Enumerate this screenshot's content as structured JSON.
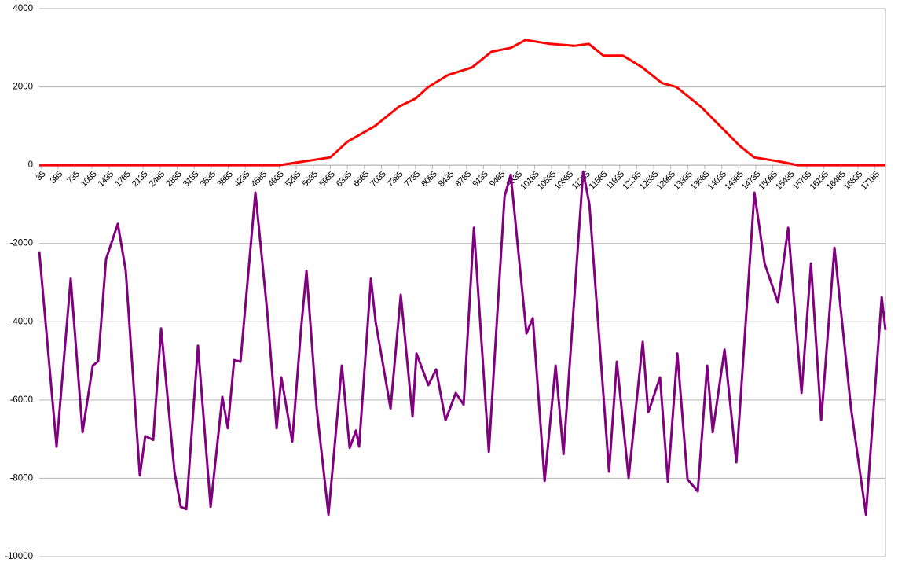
{
  "chart_data": {
    "type": "line",
    "xlim": [
      0,
      17400
    ],
    "xticks": [
      35,
      385,
      735,
      1085,
      1435,
      1785,
      2135,
      2485,
      2835,
      3185,
      3535,
      3885,
      4235,
      4585,
      4935,
      5285,
      5635,
      5985,
      6335,
      6685,
      7035,
      7385,
      7735,
      8085,
      8435,
      8785,
      9135,
      9485,
      9835,
      10185,
      10535,
      10885,
      11235,
      11585,
      11935,
      12285,
      12635,
      12985,
      13335,
      13685,
      14035,
      14385,
      14735,
      15085,
      15435,
      15785,
      16135,
      16485,
      16835,
      17185
    ],
    "ylim": [
      -10000,
      4000
    ],
    "yticks": [
      -10000,
      -8000,
      -6000,
      -4000,
      -2000,
      0,
      2000,
      4000
    ],
    "grid": true,
    "series": [
      {
        "color": "#ff0000",
        "x": [
          0,
          4935,
          5985,
          6335,
          6900,
          7400,
          7735,
          8000,
          8400,
          8900,
          9300,
          9700,
          10000,
          10500,
          11000,
          11300,
          11600,
          12000,
          12400,
          12800,
          13100,
          13600,
          14000,
          14400,
          14700,
          15200,
          15600,
          17400
        ],
        "values": [
          0,
          0,
          200,
          600,
          1000,
          1500,
          1700,
          2000,
          2300,
          2500,
          2900,
          3000,
          3200,
          3100,
          3050,
          3100,
          2800,
          2800,
          2500,
          2100,
          2000,
          1500,
          1000,
          500,
          200,
          100,
          0,
          0
        ]
      },
      {
        "color": "#800080",
        "x": [
          0,
          355,
          646,
          890,
          1100,
          1212,
          1374,
          1616,
          1778,
          2068,
          2180,
          2343,
          2505,
          2780,
          2909,
          3022,
          3264,
          3523,
          3765,
          3878,
          4007,
          4137,
          4444,
          4686,
          4880,
          4977,
          5203,
          5381,
          5494,
          5704,
          5947,
          6222,
          6383,
          6513,
          6577,
          6820,
          6917,
          7030,
          7224,
          7434,
          7676,
          7757,
          8000,
          8161,
          8355,
          8565,
          8726,
          8937,
          9244,
          9567,
          9696,
          9858,
          10019,
          10148,
          10391,
          10617,
          10779,
          11183,
          11312,
          11716,
          11877,
          12119,
          12410,
          12523,
          12765,
          12927,
          13121,
          13331,
          13541,
          13735,
          13848,
          14091,
          14333,
          14705,
          14915,
          15190,
          15400,
          15674,
          15868,
          16078,
          16352,
          16450,
          16692,
          16999,
          17322,
          17400
        ],
        "values": [
          -2200,
          -7190,
          -2900,
          -6820,
          -5120,
          -5010,
          -2400,
          -1500,
          -2700,
          -7930,
          -6920,
          -7020,
          -4170,
          -7830,
          -8730,
          -8790,
          -4610,
          -8730,
          -5920,
          -6720,
          -4980,
          -5020,
          -700,
          -3710,
          -6720,
          -5420,
          -7060,
          -4210,
          -2700,
          -6220,
          -8930,
          -5120,
          -7220,
          -6780,
          -7190,
          -2900,
          -4010,
          -4810,
          -6220,
          -3310,
          -6420,
          -4810,
          -5620,
          -5220,
          -6520,
          -5820,
          -6120,
          -1600,
          -7320,
          -800,
          -240,
          -2300,
          -4300,
          -3910,
          -8070,
          -5120,
          -7380,
          -160,
          -1000,
          -7830,
          -5020,
          -7990,
          -4510,
          -6320,
          -5420,
          -8090,
          -4810,
          -8030,
          -8330,
          -5120,
          -6820,
          -4710,
          -7590,
          -700,
          -2510,
          -3510,
          -1600,
          -5820,
          -2510,
          -6520,
          -2110,
          -3310,
          -6220,
          -8930,
          -3370,
          -4210
        ]
      }
    ]
  }
}
